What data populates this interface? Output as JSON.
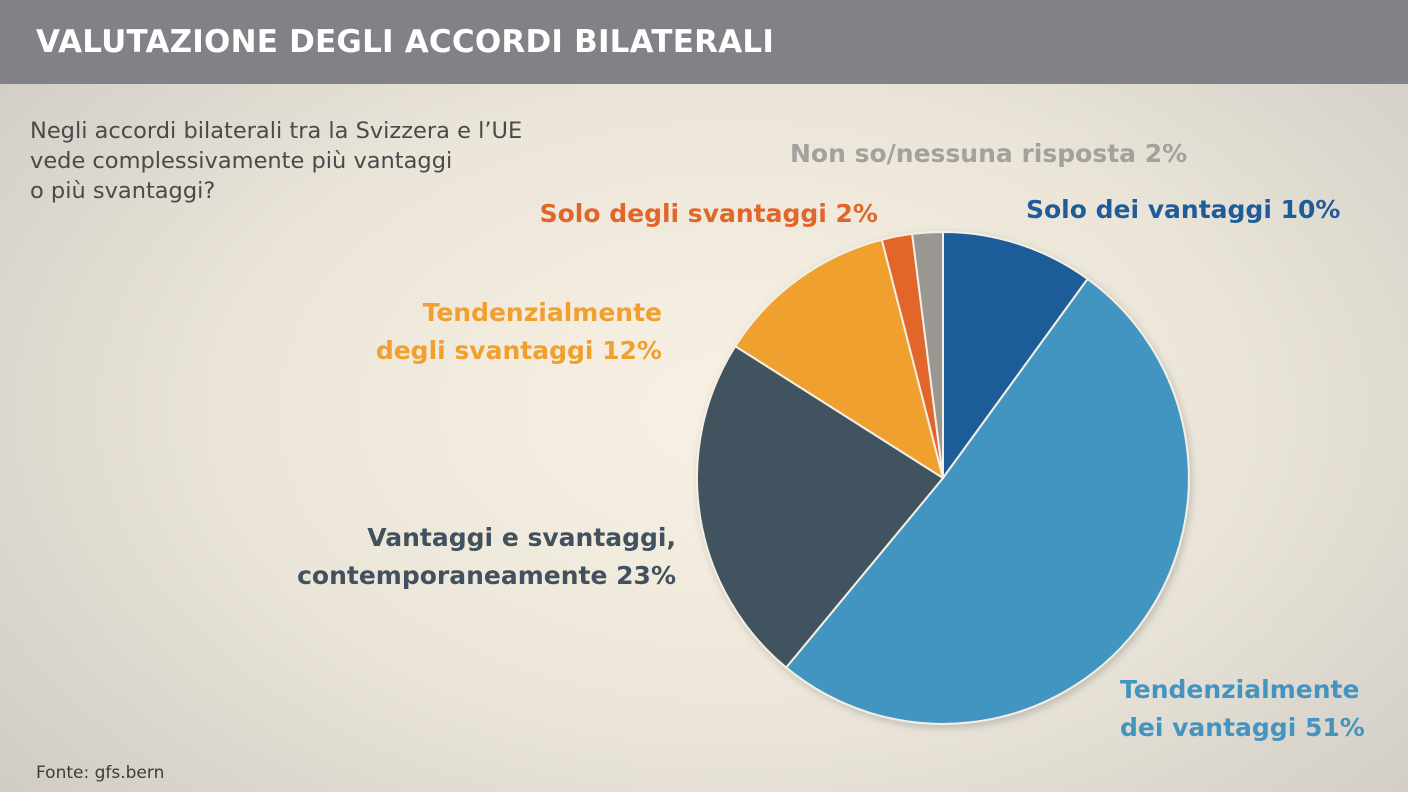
{
  "header": {
    "title": "VALUTAZIONE DEGLI ACCORDI BILATERALI"
  },
  "question": {
    "lines": [
      "Negli accordi bilaterali tra la Svizzera e l’UE",
      "vede complessivamente più vantaggi",
      "o più svantaggi?"
    ]
  },
  "source": "Fonte: gfs.bern",
  "chart_data": {
    "type": "pie",
    "slices": [
      {
        "label_lines": [
          "Solo dei vantaggi 10%"
        ],
        "value": 10,
        "color": "#1f5d99"
      },
      {
        "label_lines": [
          "Tendenzialmente",
          "dei vantaggi 51%"
        ],
        "value": 51,
        "color": "#4395c0"
      },
      {
        "label_lines": [
          "Vantaggi e svantaggi,",
          "contemporaneamente 23%"
        ],
        "value": 23,
        "color": "#41525e"
      },
      {
        "label_lines": [
          "Tendenzialmente",
          "degli svantaggi 12%"
        ],
        "value": 12,
        "color": "#f0a02e"
      },
      {
        "label_lines": [
          "Solo degli svantaggi 2%"
        ],
        "value": 2,
        "color": "#e2652a"
      },
      {
        "label_lines": [
          "Non so/nessuna risposta 2%"
        ],
        "value": 2,
        "color": "#999791"
      }
    ],
    "label_colors": [
      "#1f5d99",
      "#4395c0",
      "#41525e",
      "#f0a02e",
      "#e2652a",
      "#a3a19b"
    ],
    "start_angle_deg": 0,
    "direction": "clockwise"
  }
}
